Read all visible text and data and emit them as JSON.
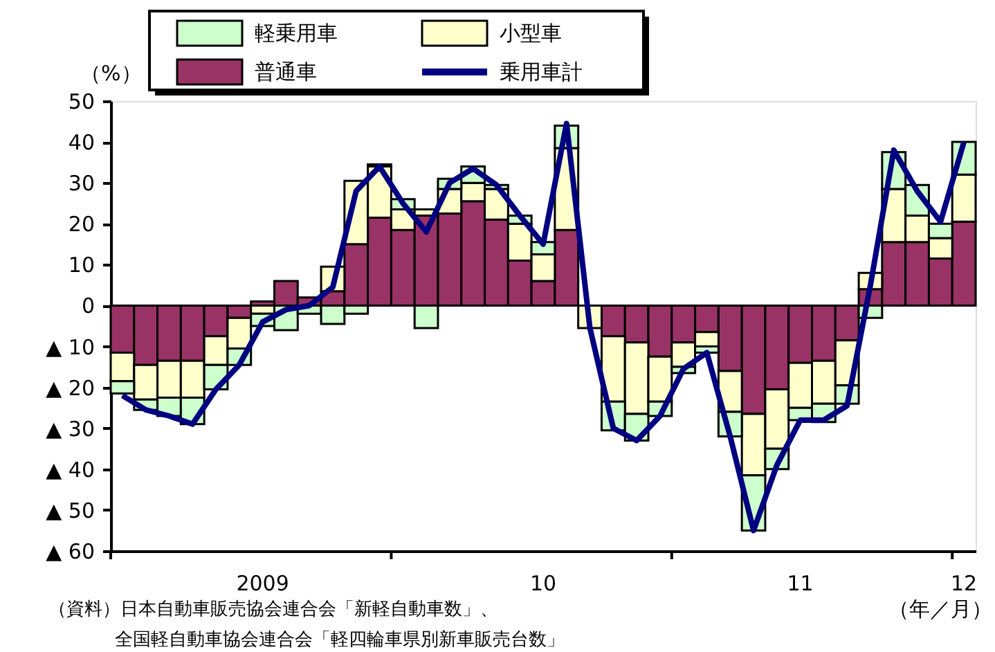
{
  "chart_data": {
    "type": "bar",
    "stacked": true,
    "ylabel": "（%）",
    "xlabel": "（年／月）",
    "categories": [
      null,
      null,
      null,
      null,
      null,
      null,
      "2009",
      null,
      null,
      null,
      null,
      null,
      null,
      null,
      null,
      null,
      null,
      null,
      "10",
      null,
      null,
      null,
      null,
      null,
      null,
      null,
      null,
      null,
      null,
      "11",
      null,
      null,
      null,
      null,
      null,
      null,
      "12"
    ],
    "series": [
      {
        "name": "普通車",
        "color": "#993366",
        "values": [
          -11.5,
          -14.5,
          -13.5,
          -13.5,
          -7.5,
          -3,
          1,
          6,
          2,
          3.5,
          15,
          21.5,
          18.5,
          22,
          22.5,
          25.5,
          21,
          11,
          6,
          18.5,
          null,
          -7.5,
          -9,
          -12.5,
          -9,
          -6.5,
          -16,
          -26.5,
          -20.5,
          -14,
          -13.5,
          -8.5,
          4,
          15.5,
          15.5,
          11.5,
          20.5
        ]
      },
      {
        "name": "小型車",
        "color": "#ffffcc",
        "values": [
          -7,
          -8.5,
          -9,
          -9,
          -7,
          -7.5,
          -2,
          null,
          null,
          6,
          15.5,
          12.5,
          5,
          1.5,
          6,
          4.5,
          7.5,
          9,
          6.5,
          20,
          -5.5,
          -16,
          -17.5,
          -11,
          -6,
          -3.5,
          -10,
          -15,
          -14.5,
          -11,
          -10.5,
          -11,
          4,
          13,
          6.5,
          5,
          11.5
        ]
      },
      {
        "name": "軽乗用車",
        "color": "#ccffcc",
        "values": [
          -3,
          -2.5,
          -4.5,
          -6.5,
          -6,
          -4,
          -3,
          -6,
          -2,
          -4.5,
          -2,
          0.5,
          2.5,
          -5.5,
          2.5,
          4,
          1,
          2,
          3,
          5.5,
          null,
          -7,
          -6.5,
          -3.5,
          -1.5,
          -1.5,
          -6,
          -13.5,
          -5,
          -3,
          -4.5,
          -4.5,
          -3,
          9,
          7.5,
          3.5,
          8
        ]
      },
      {
        "name": "乗用車計",
        "type": "line",
        "color": "#000080",
        "values": [
          -22,
          -25.5,
          -27,
          -29,
          -20.5,
          -14.5,
          -4,
          -1,
          0,
          4.5,
          28,
          34,
          25,
          18,
          30,
          33.5,
          29.5,
          22,
          15,
          44.5,
          -5.5,
          -30,
          -33,
          -27,
          -15.5,
          -11.5,
          -32,
          -55,
          -39,
          -28,
          -28,
          -24.5,
          5,
          38,
          28,
          20.5,
          40
        ]
      }
    ],
    "ylim": [
      -60,
      50
    ],
    "yticks": [
      {
        "value": -60,
        "label": "▲ 60"
      },
      {
        "value": -50,
        "label": "▲ 50"
      },
      {
        "value": -40,
        "label": "▲ 40"
      },
      {
        "value": -30,
        "label": "▲ 30"
      },
      {
        "value": -20,
        "label": "▲ 20"
      },
      {
        "value": -10,
        "label": "▲ 10"
      },
      0,
      10,
      20,
      30,
      40,
      50
    ],
    "grid": false,
    "legend": "top",
    "annotations": [
      "（資料）日本自動車販売協会連合会「新軽自動車数」、",
      "全国軽自動車協会連合会「軽四輪車県別新車販売台数」"
    ]
  }
}
